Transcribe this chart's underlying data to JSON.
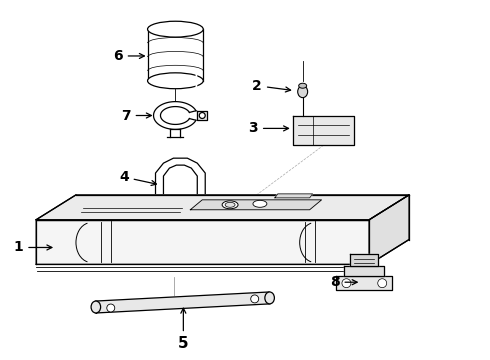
{
  "background_color": "#ffffff",
  "line_color": "#000000",
  "lw": 0.9
}
